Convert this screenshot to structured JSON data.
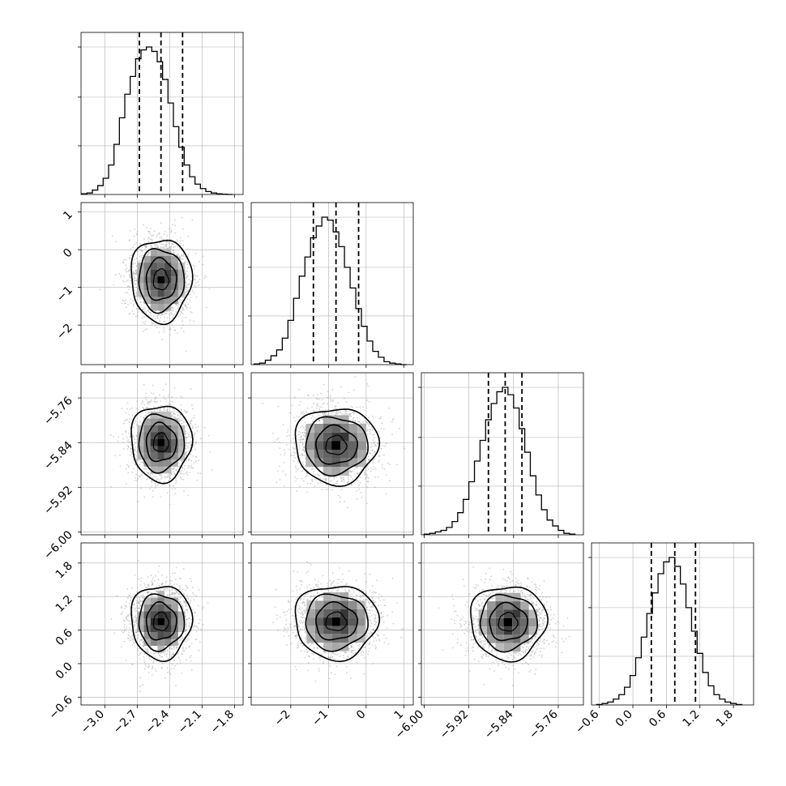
{
  "chart_data": {
    "type": "corner",
    "params": [
      {
        "range": [
          -3.22,
          -1.72
        ],
        "ticks": [
          -3.0,
          -2.7,
          -2.4,
          -2.1,
          -1.8
        ],
        "tick_labels": [
          "−3.0",
          "−2.7",
          "−2.4",
          "−2.1",
          "−1.8"
        ],
        "quantiles": [
          -2.68,
          -2.48,
          -2.28
        ],
        "hist_bins": [
          -3.19,
          -3.14,
          -3.09,
          -3.04,
          -2.99,
          -2.94,
          -2.89,
          -2.84,
          -2.79,
          -2.74,
          -2.69,
          -2.64,
          -2.59,
          -2.54,
          -2.49,
          -2.44,
          -2.39,
          -2.34,
          -2.29,
          -2.24,
          -2.19,
          -2.14,
          -2.09,
          -2.04,
          -1.99,
          -1.94,
          -1.89,
          -1.84
        ],
        "hist_values": [
          0.5,
          1,
          3,
          6,
          11,
          20,
          34,
          52,
          68,
          80,
          92,
          98,
          100,
          97,
          90,
          78,
          62,
          46,
          32,
          20,
          12,
          7,
          4,
          2,
          1,
          0.5,
          0.2,
          0
        ]
      },
      {
        "range": [
          -3.05,
          1.25
        ],
        "ticks": [
          -2,
          -1,
          0,
          1
        ],
        "tick_labels": [
          "−2",
          "−1",
          "0",
          "1"
        ],
        "quantiles": [
          -1.4,
          -0.8,
          -0.2
        ],
        "hist_bins": [
          -2.9,
          -2.75,
          -2.6,
          -2.45,
          -2.3,
          -2.15,
          -2.0,
          -1.85,
          -1.7,
          -1.55,
          -1.4,
          -1.25,
          -1.1,
          -0.95,
          -0.8,
          -0.65,
          -0.5,
          -0.35,
          -0.2,
          -0.05,
          0.1,
          0.25,
          0.4,
          0.55,
          0.7,
          0.85,
          1.0
        ],
        "hist_values": [
          0.5,
          1,
          3,
          6,
          10,
          18,
          30,
          45,
          60,
          73,
          86,
          94,
          100,
          98,
          90,
          80,
          66,
          52,
          38,
          26,
          16,
          9,
          5,
          2,
          1,
          0.5,
          0
        ]
      },
      {
        "range": [
          -6.005,
          -5.715
        ],
        "ticks": [
          -6.0,
          -5.92,
          -5.84,
          -5.76
        ],
        "tick_labels": [
          "−6.00",
          "−5.92",
          "−5.84",
          "−5.76"
        ],
        "quantiles": [
          -5.885,
          -5.855,
          -5.825
        ],
        "hist_bins": [
          -5.995,
          -5.985,
          -5.975,
          -5.965,
          -5.955,
          -5.945,
          -5.935,
          -5.925,
          -5.915,
          -5.905,
          -5.895,
          -5.885,
          -5.875,
          -5.865,
          -5.855,
          -5.845,
          -5.835,
          -5.825,
          -5.815,
          -5.805,
          -5.795,
          -5.785,
          -5.775,
          -5.765,
          -5.755,
          -5.745,
          -5.735
        ],
        "hist_values": [
          0.5,
          1,
          2,
          3,
          5,
          9,
          15,
          24,
          36,
          50,
          64,
          78,
          89,
          97,
          100,
          95,
          86,
          72,
          56,
          40,
          27,
          17,
          10,
          6,
          3,
          1,
          0.5
        ]
      },
      {
        "range": [
          -0.74,
          2.16
        ],
        "ticks": [
          -0.6,
          0.0,
          0.6,
          1.2,
          1.8
        ],
        "tick_labels": [
          "−0.6",
          "0.0",
          "0.6",
          "1.2",
          "1.8"
        ],
        "quantiles": [
          0.33,
          0.75,
          1.12
        ],
        "hist_bins": [
          -0.6,
          -0.5,
          -0.4,
          -0.3,
          -0.2,
          -0.1,
          0.0,
          0.1,
          0.2,
          0.3,
          0.4,
          0.5,
          0.6,
          0.7,
          0.8,
          0.9,
          1.0,
          1.1,
          1.2,
          1.3,
          1.4,
          1.5,
          1.6,
          1.7,
          1.8,
          1.9
        ],
        "hist_values": [
          0.3,
          1,
          2,
          4,
          7,
          12,
          20,
          32,
          46,
          62,
          76,
          89,
          97,
          100,
          94,
          82,
          66,
          50,
          35,
          22,
          13,
          7,
          4,
          2,
          1,
          0.3
        ]
      }
    ],
    "pairs": [
      {
        "row": 1,
        "col": 0,
        "mean": [
          -2.48,
          -0.8
        ],
        "sd": [
          0.14,
          0.55
        ]
      },
      {
        "row": 2,
        "col": 0,
        "mean": [
          -2.48,
          -5.84
        ],
        "sd": [
          0.14,
          0.034
        ]
      },
      {
        "row": 2,
        "col": 1,
        "mean": [
          -0.8,
          -5.845
        ],
        "sd": [
          0.55,
          0.034
        ]
      },
      {
        "row": 3,
        "col": 0,
        "mean": [
          -2.48,
          0.75
        ],
        "sd": [
          0.14,
          0.33
        ]
      },
      {
        "row": 3,
        "col": 1,
        "mean": [
          -0.8,
          0.75
        ],
        "sd": [
          0.55,
          0.33
        ]
      },
      {
        "row": 3,
        "col": 2,
        "mean": [
          -5.85,
          0.74
        ],
        "sd": [
          0.034,
          0.33
        ]
      }
    ],
    "contour_levels": [
      0.5,
      1.0,
      1.5,
      2.0
    ],
    "grid": true,
    "colors": {
      "line": "#000000",
      "points": "#9a9a9a",
      "grid": "#b0b0b0",
      "density_max": "#000000"
    }
  }
}
